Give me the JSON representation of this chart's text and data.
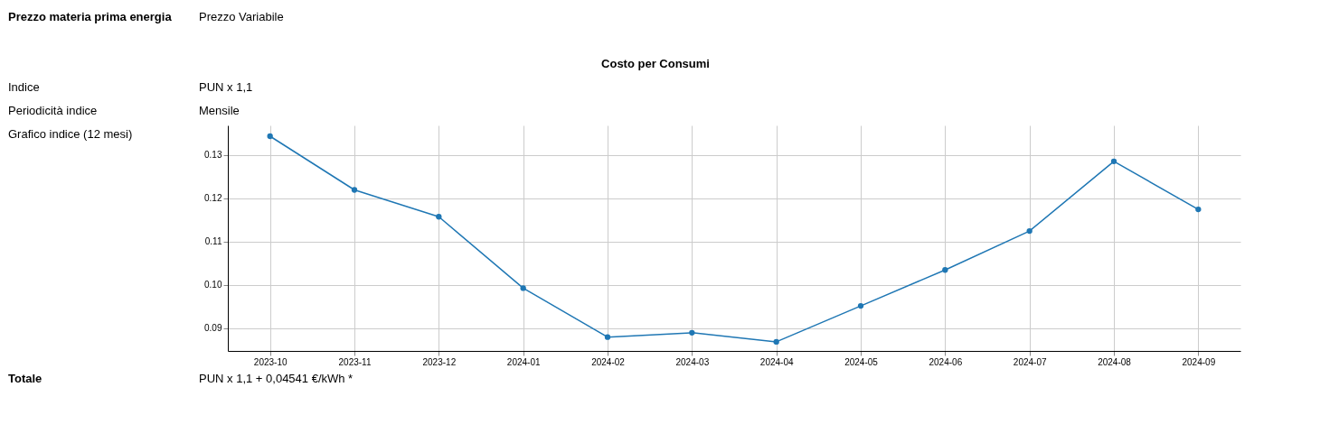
{
  "chart_data": {
    "type": "line",
    "annotations": [
      "Prezzo materia prima energia",
      "Prezzo Variabile",
      "Costo per Consumi",
      "Indice",
      "PUN x 1,1",
      "Periodicità indice",
      "Mensile",
      "Grafico indice (12 mesi)",
      "Totale",
      "PUN x 1,1 + 0,04541 €/kWh *"
    ],
    "categories": [
      "2023-10",
      "2023-11",
      "2023-12",
      "2024-01",
      "2024-02",
      "2024-03",
      "2024-04",
      "2024-05",
      "2024-06",
      "2024-07",
      "2024-08",
      "2024-09"
    ],
    "series": [
      {
        "color": "#1f77b4",
        "values": [
          0.1343,
          0.1219,
          0.1157,
          0.0992,
          0.0879,
          0.0889,
          0.0868,
          0.0951,
          0.1034,
          0.1124,
          0.1285,
          0.1174
        ]
      }
    ],
    "ylim": [
      0.0847,
      0.1368
    ],
    "yticks": [
      0.09,
      {
        "value": 0.1,
        "label": "0.10"
      },
      0.11,
      0.12,
      0.13
    ],
    "grid": true,
    "marker": "circle",
    "line_style": "solid"
  }
}
